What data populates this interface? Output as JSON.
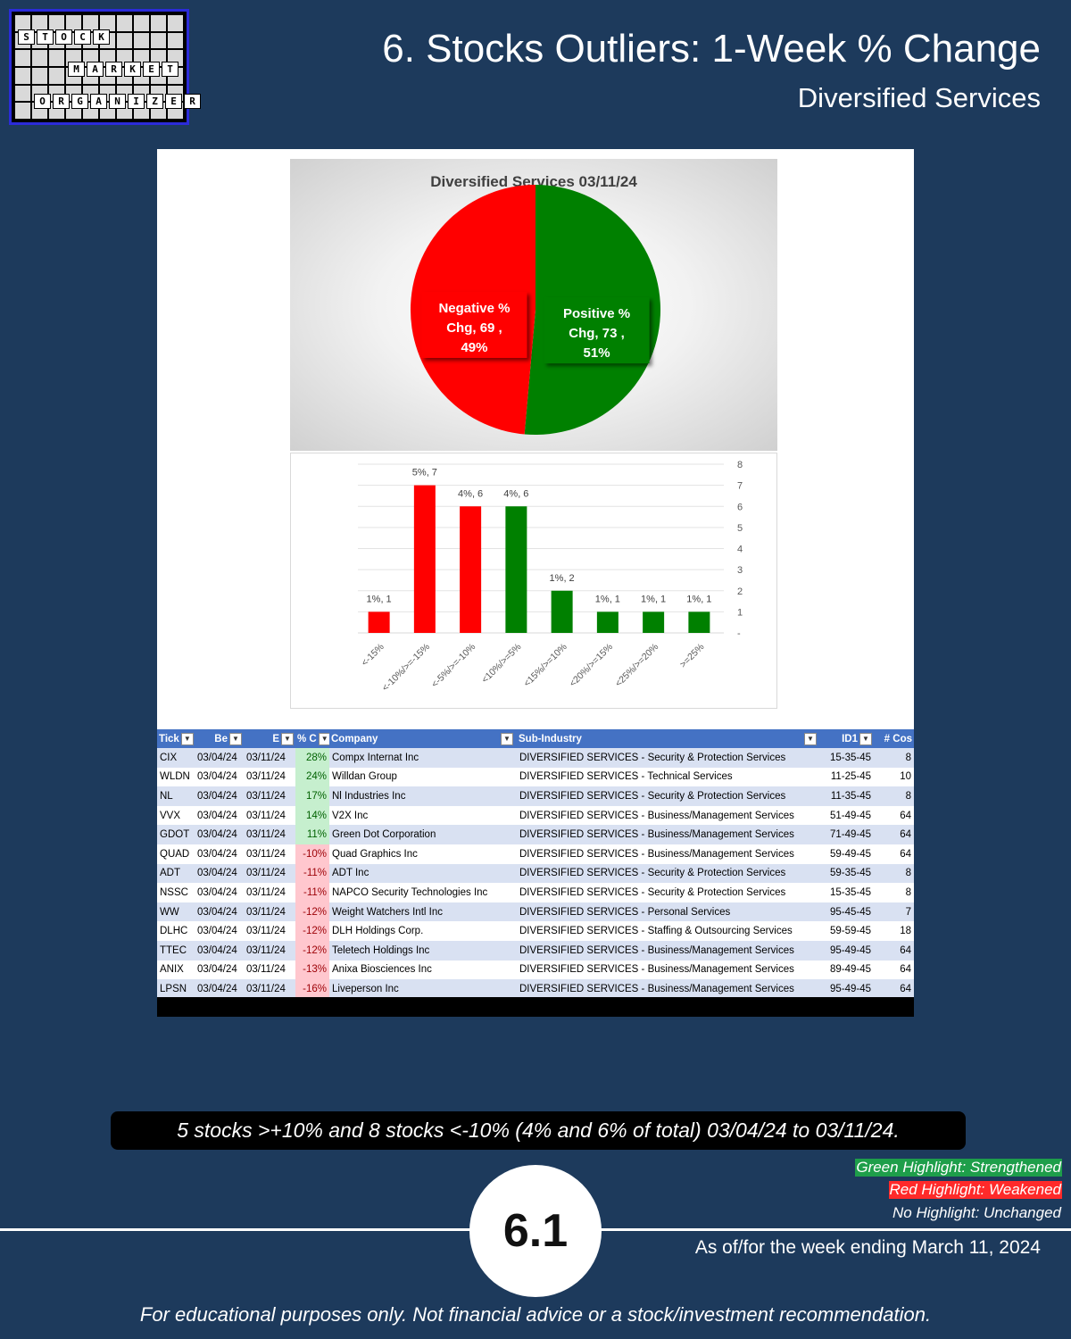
{
  "logo": {
    "words": [
      "STOCK",
      "MARKET",
      "ORGANIZER"
    ]
  },
  "header": {
    "title": "6. Stocks Outliers: 1-Week % Change",
    "subtitle": "Diversified Services"
  },
  "chart_data": [
    {
      "type": "pie",
      "title": "Diversified Services 03/11/24",
      "slices": [
        {
          "line1": "Negative %",
          "line2": "Chg,  69 ,",
          "line3": "49%",
          "value": 69,
          "percent": 49,
          "color": "#ff0000"
        },
        {
          "line1": "Positive %",
          "line2": "Chg,  73 ,",
          "line3": "51%",
          "value": 73,
          "percent": 51,
          "color": "#008000"
        }
      ]
    },
    {
      "type": "bar",
      "title": "",
      "categories": [
        "<-15%",
        "<-10%/>=-15%",
        "<-5%/>=-10%",
        "<10%/>=5%",
        "<15%/>=10%",
        "<20%/>=15%",
        "<25%/>=20%",
        ">=25%"
      ],
      "values": [
        1,
        7,
        6,
        6,
        2,
        1,
        1,
        1
      ],
      "data_labels": [
        "1%,  1",
        "5%,  7",
        "4%,  6",
        "4%,  6",
        "1%,  2",
        "1%,  1",
        "1%,  1",
        "1%,  1"
      ],
      "colors": [
        "#ff0000",
        "#ff0000",
        "#ff0000",
        "#008000",
        "#008000",
        "#008000",
        "#008000",
        "#008000"
      ],
      "y_ticks": [
        "-",
        "1",
        "2",
        "3",
        "4",
        "5",
        "6",
        "7",
        "8"
      ],
      "ylim": [
        0,
        8
      ],
      "y_axis_side": "right"
    },
    {
      "type": "table",
      "columns": [
        "Tick",
        "Be",
        "E",
        "% C",
        "Company",
        "Sub-Industry",
        "ID1",
        "# Cos"
      ],
      "rows": [
        {
          "tick": "CIX",
          "begin": "03/04/24",
          "end": "03/11/24",
          "pct": "28%",
          "dir": "pos",
          "company": "Compx Internat Inc",
          "sub": "DIVERSIFIED SERVICES - Security & Protection Services",
          "id1": "15-35-45",
          "cos": "8"
        },
        {
          "tick": "WLDN",
          "begin": "03/04/24",
          "end": "03/11/24",
          "pct": "24%",
          "dir": "pos",
          "company": "Willdan Group",
          "sub": "DIVERSIFIED SERVICES - Technical Services",
          "id1": "11-25-45",
          "cos": "10"
        },
        {
          "tick": "NL",
          "begin": "03/04/24",
          "end": "03/11/24",
          "pct": "17%",
          "dir": "pos",
          "company": "Nl Industries Inc",
          "sub": "DIVERSIFIED SERVICES - Security & Protection Services",
          "id1": "11-35-45",
          "cos": "8"
        },
        {
          "tick": "VVX",
          "begin": "03/04/24",
          "end": "03/11/24",
          "pct": "14%",
          "dir": "pos",
          "company": "V2X Inc",
          "sub": "DIVERSIFIED SERVICES - Business/Management Services",
          "id1": "51-49-45",
          "cos": "64"
        },
        {
          "tick": "GDOT",
          "begin": "03/04/24",
          "end": "03/11/24",
          "pct": "11%",
          "dir": "pos",
          "company": "Green Dot Corporation",
          "sub": "DIVERSIFIED SERVICES - Business/Management Services",
          "id1": "71-49-45",
          "cos": "64"
        },
        {
          "tick": "QUAD",
          "begin": "03/04/24",
          "end": "03/11/24",
          "pct": "-10%",
          "dir": "neg",
          "company": "Quad Graphics Inc",
          "sub": "DIVERSIFIED SERVICES - Business/Management Services",
          "id1": "59-49-45",
          "cos": "64"
        },
        {
          "tick": "ADT",
          "begin": "03/04/24",
          "end": "03/11/24",
          "pct": "-11%",
          "dir": "neg",
          "company": "ADT Inc",
          "sub": "DIVERSIFIED SERVICES - Security & Protection Services",
          "id1": "59-35-45",
          "cos": "8"
        },
        {
          "tick": "NSSC",
          "begin": "03/04/24",
          "end": "03/11/24",
          "pct": "-11%",
          "dir": "neg",
          "company": "NAPCO Security Technologies Inc",
          "sub": "DIVERSIFIED SERVICES - Security & Protection Services",
          "id1": "15-35-45",
          "cos": "8"
        },
        {
          "tick": "WW",
          "begin": "03/04/24",
          "end": "03/11/24",
          "pct": "-12%",
          "dir": "neg",
          "company": "Weight Watchers Intl Inc",
          "sub": "DIVERSIFIED SERVICES - Personal Services",
          "id1": "95-45-45",
          "cos": "7"
        },
        {
          "tick": "DLHC",
          "begin": "03/04/24",
          "end": "03/11/24",
          "pct": "-12%",
          "dir": "neg",
          "company": "DLH Holdings Corp.",
          "sub": "DIVERSIFIED SERVICES - Staffing & Outsourcing Services",
          "id1": "59-59-45",
          "cos": "18"
        },
        {
          "tick": "TTEC",
          "begin": "03/04/24",
          "end": "03/11/24",
          "pct": "-12%",
          "dir": "neg",
          "company": "Teletech Holdings Inc",
          "sub": "DIVERSIFIED SERVICES - Business/Management Services",
          "id1": "95-49-45",
          "cos": "64"
        },
        {
          "tick": "ANIX",
          "begin": "03/04/24",
          "end": "03/11/24",
          "pct": "-13%",
          "dir": "neg",
          "company": "Anixa Biosciences Inc",
          "sub": "DIVERSIFIED SERVICES - Business/Management Services",
          "id1": "89-49-45",
          "cos": "64"
        },
        {
          "tick": "LPSN",
          "begin": "03/04/24",
          "end": "03/11/24",
          "pct": "-16%",
          "dir": "neg",
          "company": "Liveperson Inc",
          "sub": "DIVERSIFIED SERVICES - Business/Management Services",
          "id1": "95-49-45",
          "cos": "64"
        }
      ]
    }
  ],
  "summary": "5 stocks >+10% and 8 stocks <-10% (4% and 6% of total) 03/04/24 to 03/11/24.",
  "legend": {
    "green": {
      "text": "Green Highlight: Strengthened",
      "color": "#1e9e4a"
    },
    "red": {
      "text": "Red Highlight: Weakened",
      "color": "#ff2a2a"
    },
    "none": {
      "text": "No Highlight: Unchanged"
    }
  },
  "footer": {
    "badge": "6.1",
    "as_of": "As of/for the week ending March 11, 2024",
    "disclaimer": "For educational purposes only. Not financial advice or a stock/investment recommendation."
  }
}
